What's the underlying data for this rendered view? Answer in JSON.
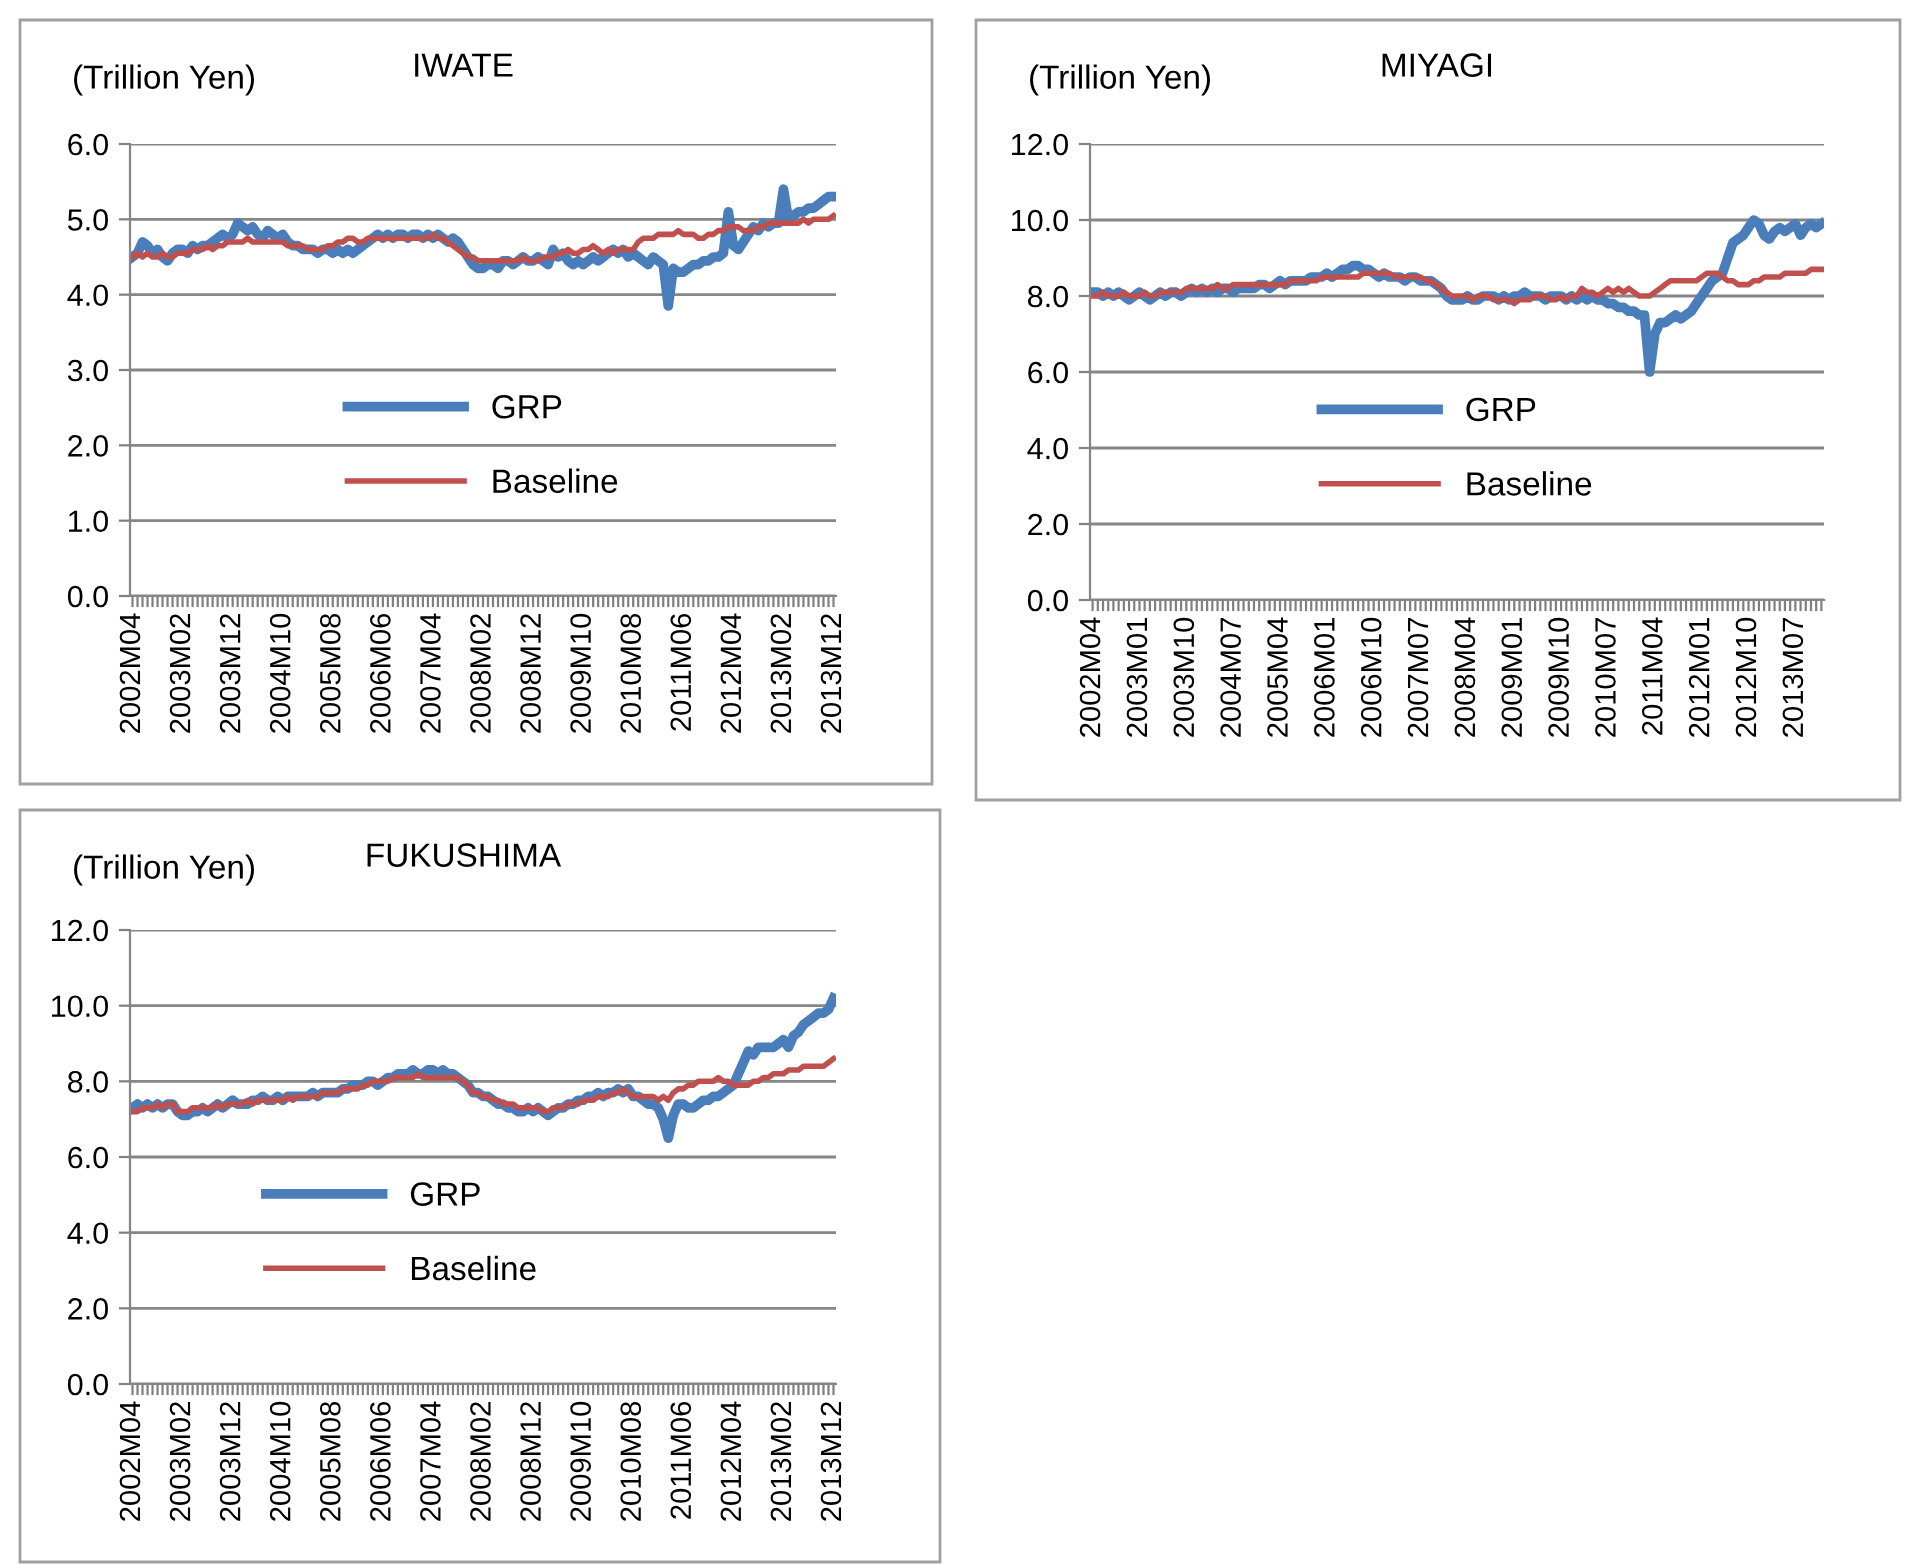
{
  "chart_data": [
    {
      "type": "line",
      "title": "IWATE",
      "ylabel": "(Trillion Yen)",
      "ylim": [
        0,
        6
      ],
      "yticks": [
        {
          "value": 0,
          "label": "0.0"
        },
        {
          "value": 1,
          "label": "1.0"
        },
        {
          "value": 2,
          "label": "2.0"
        },
        {
          "value": 3,
          "label": "3.0"
        },
        {
          "value": 4,
          "label": "4.0"
        },
        {
          "value": 5,
          "label": "5.0"
        },
        {
          "value": 6,
          "label": "6.0"
        }
      ],
      "grid": "y",
      "legend": "center",
      "categories": [
        "2002M04",
        null,
        null,
        null,
        null,
        null,
        null,
        null,
        null,
        null,
        "2003M02",
        null,
        null,
        null,
        null,
        null,
        null,
        null,
        null,
        null,
        "2003M12",
        null,
        null,
        null,
        null,
        null,
        null,
        null,
        null,
        null,
        "2004M10",
        null,
        null,
        null,
        null,
        null,
        null,
        null,
        null,
        null,
        "2005M08",
        null,
        null,
        null,
        null,
        null,
        null,
        null,
        null,
        null,
        "2006M06",
        null,
        null,
        null,
        null,
        null,
        null,
        null,
        null,
        null,
        "2007M04",
        null,
        null,
        null,
        null,
        null,
        null,
        null,
        null,
        null,
        "2008M02",
        null,
        null,
        null,
        null,
        null,
        null,
        null,
        null,
        null,
        "2008M12",
        null,
        null,
        null,
        null,
        null,
        null,
        null,
        null,
        null,
        "2009M10",
        null,
        null,
        null,
        null,
        null,
        null,
        null,
        null,
        null,
        "2010M08",
        null,
        null,
        null,
        null,
        null,
        null,
        null,
        null,
        null,
        "2011M06",
        null,
        null,
        null,
        null,
        null,
        null,
        null,
        null,
        null,
        "2012M04",
        null,
        null,
        null,
        null,
        null,
        null,
        null,
        null,
        null,
        "2013M02",
        null,
        null,
        null,
        null,
        null,
        null,
        null,
        null,
        null,
        "2013M12"
      ],
      "series": [
        {
          "name": "GRP",
          "color": "#4a7ebb",
          "values": [
            4.5,
            4.55,
            4.7,
            4.65,
            4.55,
            4.6,
            4.5,
            4.45,
            4.55,
            4.6,
            4.6,
            4.55,
            4.65,
            4.6,
            4.65,
            4.65,
            4.7,
            4.75,
            4.8,
            4.75,
            4.8,
            4.95,
            4.9,
            4.85,
            4.9,
            4.8,
            4.75,
            4.85,
            4.8,
            4.75,
            4.8,
            4.7,
            4.65,
            4.65,
            4.6,
            4.6,
            4.6,
            4.55,
            4.6,
            4.6,
            4.55,
            4.6,
            4.55,
            4.6,
            4.55,
            4.6,
            4.65,
            4.7,
            4.75,
            4.8,
            4.75,
            4.8,
            4.75,
            4.8,
            4.8,
            4.75,
            4.8,
            4.8,
            4.75,
            4.8,
            4.75,
            4.8,
            4.75,
            4.7,
            4.75,
            4.7,
            4.6,
            4.5,
            4.4,
            4.35,
            4.35,
            4.4,
            4.4,
            4.35,
            4.45,
            4.45,
            4.4,
            4.45,
            4.5,
            4.45,
            4.45,
            4.5,
            4.45,
            4.4,
            4.6,
            4.5,
            4.55,
            4.45,
            4.4,
            4.45,
            4.4,
            4.45,
            4.5,
            4.45,
            4.5,
            4.55,
            4.6,
            4.55,
            4.6,
            4.5,
            4.55,
            4.5,
            4.45,
            4.4,
            4.5,
            4.45,
            4.4,
            3.85,
            4.35,
            4.3,
            4.3,
            4.35,
            4.4,
            4.4,
            4.45,
            4.45,
            4.5,
            4.5,
            4.55,
            5.1,
            4.65,
            4.6,
            4.7,
            4.8,
            4.9,
            4.85,
            4.95,
            4.9,
            4.95,
            4.95,
            5.4,
            5.0,
            5.05,
            5.1,
            5.1,
            5.15,
            5.15,
            5.2,
            5.25,
            5.3,
            5.3
          ]
        },
        {
          "name": "Baseline",
          "color": "#c0504d",
          "values": [
            4.5,
            4.55,
            4.5,
            4.55,
            4.5,
            4.5,
            4.55,
            4.5,
            4.5,
            4.55,
            4.55,
            4.55,
            4.6,
            4.6,
            4.6,
            4.65,
            4.6,
            4.65,
            4.65,
            4.7,
            4.7,
            4.7,
            4.7,
            4.75,
            4.7,
            4.7,
            4.7,
            4.7,
            4.7,
            4.7,
            4.7,
            4.65,
            4.65,
            4.65,
            4.65,
            4.6,
            4.6,
            4.6,
            4.6,
            4.65,
            4.65,
            4.7,
            4.7,
            4.75,
            4.75,
            4.7,
            4.7,
            4.75,
            4.75,
            4.75,
            4.75,
            4.75,
            4.75,
            4.75,
            4.75,
            4.75,
            4.75,
            4.75,
            4.75,
            4.75,
            4.8,
            4.75,
            4.75,
            4.7,
            4.65,
            4.6,
            4.55,
            4.5,
            4.5,
            4.45,
            4.45,
            4.45,
            4.45,
            4.45,
            4.45,
            4.45,
            4.45,
            4.45,
            4.5,
            4.45,
            4.45,
            4.45,
            4.5,
            4.5,
            4.5,
            4.55,
            4.55,
            4.6,
            4.55,
            4.55,
            4.6,
            4.6,
            4.65,
            4.6,
            4.55,
            4.6,
            4.55,
            4.6,
            4.6,
            4.6,
            4.6,
            4.7,
            4.75,
            4.75,
            4.75,
            4.8,
            4.8,
            4.8,
            4.8,
            4.85,
            4.8,
            4.8,
            4.8,
            4.75,
            4.75,
            4.8,
            4.8,
            4.85,
            4.85,
            4.9,
            4.9,
            4.9,
            4.85,
            4.85,
            4.85,
            4.9,
            4.9,
            4.95,
            4.95,
            4.95,
            4.95,
            4.95,
            4.95,
            4.95,
            5.0,
            4.95,
            5.0,
            5.0,
            5.0,
            5.0,
            5.05
          ]
        }
      ]
    },
    {
      "type": "line",
      "title": "MIYAGI",
      "ylabel": "(Trillion Yen)",
      "ylim": [
        0,
        12
      ],
      "yticks": [
        {
          "value": 0,
          "label": "0.0"
        },
        {
          "value": 2,
          "label": "2.0"
        },
        {
          "value": 4,
          "label": "4.0"
        },
        {
          "value": 6,
          "label": "6.0"
        },
        {
          "value": 8,
          "label": "8.0"
        },
        {
          "value": 10,
          "label": "10.0"
        },
        {
          "value": 12,
          "label": "12.0"
        }
      ],
      "grid": "y",
      "legend": "center",
      "categories": [
        "2002M04",
        null,
        null,
        null,
        null,
        null,
        null,
        null,
        null,
        "2003M01",
        null,
        null,
        null,
        null,
        null,
        null,
        null,
        null,
        "2003M10",
        null,
        null,
        null,
        null,
        null,
        null,
        null,
        null,
        "2004M07",
        null,
        null,
        null,
        null,
        null,
        null,
        null,
        null,
        "2005M04",
        null,
        null,
        null,
        null,
        null,
        null,
        null,
        null,
        "2006M01",
        null,
        null,
        null,
        null,
        null,
        null,
        null,
        null,
        "2006M10",
        null,
        null,
        null,
        null,
        null,
        null,
        null,
        null,
        "2007M07",
        null,
        null,
        null,
        null,
        null,
        null,
        null,
        null,
        "2008M04",
        null,
        null,
        null,
        null,
        null,
        null,
        null,
        null,
        "2009M01",
        null,
        null,
        null,
        null,
        null,
        null,
        null,
        null,
        "2009M10",
        null,
        null,
        null,
        null,
        null,
        null,
        null,
        null,
        "2010M07",
        null,
        null,
        null,
        null,
        null,
        null,
        null,
        null,
        "2011M04",
        null,
        null,
        null,
        null,
        null,
        null,
        null,
        null,
        "2012M01",
        null,
        null,
        null,
        null,
        null,
        null,
        null,
        null,
        "2012M10",
        null,
        null,
        null,
        null,
        null,
        null,
        null,
        null,
        "2013M07",
        null,
        null,
        null,
        null,
        null
      ],
      "series": [
        {
          "name": "GRP",
          "color": "#4a7ebb",
          "values": [
            8.1,
            8.1,
            8.0,
            8.1,
            8.0,
            8.1,
            8.0,
            7.9,
            8.0,
            8.1,
            8.0,
            7.9,
            8.0,
            8.1,
            8.0,
            8.1,
            8.1,
            8.0,
            8.1,
            8.2,
            8.1,
            8.2,
            8.1,
            8.2,
            8.1,
            8.2,
            8.2,
            8.1,
            8.2,
            8.2,
            8.2,
            8.2,
            8.3,
            8.3,
            8.2,
            8.3,
            8.4,
            8.3,
            8.4,
            8.4,
            8.4,
            8.4,
            8.5,
            8.5,
            8.5,
            8.6,
            8.5,
            8.6,
            8.7,
            8.7,
            8.8,
            8.8,
            8.7,
            8.7,
            8.6,
            8.5,
            8.6,
            8.5,
            8.5,
            8.5,
            8.4,
            8.5,
            8.5,
            8.4,
            8.4,
            8.4,
            8.3,
            8.2,
            8.0,
            7.9,
            7.9,
            7.9,
            8.0,
            7.9,
            7.9,
            8.0,
            8.0,
            8.0,
            7.9,
            8.0,
            7.9,
            8.0,
            8.0,
            8.1,
            8.0,
            8.0,
            8.0,
            7.9,
            8.0,
            8.0,
            8.0,
            7.9,
            8.0,
            7.9,
            8.0,
            7.9,
            8.0,
            7.9,
            7.9,
            7.8,
            7.8,
            7.7,
            7.7,
            7.6,
            7.6,
            7.5,
            7.5,
            6.0,
            7.0,
            7.3,
            7.3,
            7.4,
            7.5,
            7.4,
            7.5,
            7.6,
            7.8,
            8.0,
            8.2,
            8.4,
            8.5,
            8.6,
            9.0,
            9.4,
            9.5,
            9.6,
            9.8,
            10.0,
            9.9,
            9.6,
            9.5,
            9.7,
            9.8,
            9.7,
            9.8,
            9.9,
            9.6,
            9.8,
            9.9,
            9.8,
            9.9
          ]
        },
        {
          "name": "Baseline",
          "color": "#c0504d",
          "values": [
            8.0,
            8.0,
            8.1,
            8.0,
            8.0,
            8.0,
            8.1,
            8.0,
            8.0,
            8.0,
            8.1,
            8.0,
            8.0,
            8.1,
            8.1,
            8.1,
            8.1,
            8.1,
            8.2,
            8.2,
            8.2,
            8.2,
            8.2,
            8.2,
            8.3,
            8.2,
            8.2,
            8.3,
            8.3,
            8.3,
            8.3,
            8.3,
            8.3,
            8.3,
            8.3,
            8.3,
            8.3,
            8.3,
            8.4,
            8.4,
            8.4,
            8.4,
            8.4,
            8.4,
            8.5,
            8.5,
            8.5,
            8.5,
            8.5,
            8.5,
            8.5,
            8.5,
            8.6,
            8.6,
            8.6,
            8.6,
            8.6,
            8.6,
            8.5,
            8.5,
            8.5,
            8.5,
            8.5,
            8.5,
            8.4,
            8.4,
            8.3,
            8.2,
            8.1,
            8.0,
            8.0,
            8.0,
            8.0,
            7.9,
            8.0,
            8.0,
            8.0,
            7.9,
            7.9,
            7.9,
            7.9,
            7.8,
            7.9,
            7.9,
            7.9,
            8.0,
            8.0,
            8.0,
            7.9,
            7.9,
            8.0,
            7.9,
            8.0,
            8.0,
            8.2,
            8.1,
            8.1,
            8.0,
            8.1,
            8.2,
            8.1,
            8.2,
            8.1,
            8.2,
            8.1,
            8.0,
            8.0,
            8.0,
            8.1,
            8.2,
            8.3,
            8.4,
            8.4,
            8.4,
            8.4,
            8.4,
            8.4,
            8.5,
            8.6,
            8.6,
            8.6,
            8.5,
            8.4,
            8.4,
            8.3,
            8.3,
            8.3,
            8.4,
            8.4,
            8.5,
            8.5,
            8.5,
            8.5,
            8.6,
            8.6,
            8.6,
            8.6,
            8.6,
            8.7,
            8.7,
            8.7
          ]
        }
      ]
    },
    {
      "type": "line",
      "title": "FUKUSHIMA",
      "ylabel": "(Trillion Yen)",
      "ylim": [
        0,
        12
      ],
      "yticks": [
        {
          "value": 0,
          "label": "0.0"
        },
        {
          "value": 2,
          "label": "2.0"
        },
        {
          "value": 4,
          "label": "4.0"
        },
        {
          "value": 6,
          "label": "6.0"
        },
        {
          "value": 8,
          "label": "8.0"
        },
        {
          "value": 10,
          "label": "10.0"
        },
        {
          "value": 12,
          "label": "12.0"
        }
      ],
      "grid": "y",
      "legend": "center left",
      "categories": [
        "2002M04",
        null,
        null,
        null,
        null,
        null,
        null,
        null,
        null,
        null,
        "2003M02",
        null,
        null,
        null,
        null,
        null,
        null,
        null,
        null,
        null,
        "2003M12",
        null,
        null,
        null,
        null,
        null,
        null,
        null,
        null,
        null,
        "2004M10",
        null,
        null,
        null,
        null,
        null,
        null,
        null,
        null,
        null,
        "2005M08",
        null,
        null,
        null,
        null,
        null,
        null,
        null,
        null,
        null,
        "2006M06",
        null,
        null,
        null,
        null,
        null,
        null,
        null,
        null,
        null,
        "2007M04",
        null,
        null,
        null,
        null,
        null,
        null,
        null,
        null,
        null,
        "2008M02",
        null,
        null,
        null,
        null,
        null,
        null,
        null,
        null,
        null,
        "2008M12",
        null,
        null,
        null,
        null,
        null,
        null,
        null,
        null,
        null,
        "2009M10",
        null,
        null,
        null,
        null,
        null,
        null,
        null,
        null,
        null,
        "2010M08",
        null,
        null,
        null,
        null,
        null,
        null,
        null,
        null,
        null,
        "2011M06",
        null,
        null,
        null,
        null,
        null,
        null,
        null,
        null,
        null,
        "2012M04",
        null,
        null,
        null,
        null,
        null,
        null,
        null,
        null,
        null,
        "2013M02",
        null,
        null,
        null,
        null,
        null,
        null,
        null,
        null,
        null,
        "2013M12"
      ],
      "series": [
        {
          "name": "GRP",
          "color": "#4a7ebb",
          "values": [
            7.3,
            7.4,
            7.3,
            7.4,
            7.3,
            7.4,
            7.3,
            7.4,
            7.4,
            7.2,
            7.1,
            7.1,
            7.2,
            7.2,
            7.3,
            7.2,
            7.3,
            7.4,
            7.3,
            7.4,
            7.5,
            7.4,
            7.4,
            7.4,
            7.5,
            7.5,
            7.6,
            7.5,
            7.5,
            7.6,
            7.5,
            7.6,
            7.6,
            7.6,
            7.6,
            7.6,
            7.7,
            7.6,
            7.7,
            7.7,
            7.7,
            7.7,
            7.8,
            7.8,
            7.9,
            7.9,
            7.9,
            8.0,
            8.0,
            7.9,
            8.0,
            8.1,
            8.1,
            8.2,
            8.2,
            8.2,
            8.3,
            8.2,
            8.2,
            8.3,
            8.3,
            8.2,
            8.3,
            8.2,
            8.2,
            8.1,
            8.0,
            7.9,
            7.7,
            7.7,
            7.6,
            7.6,
            7.5,
            7.4,
            7.4,
            7.3,
            7.3,
            7.2,
            7.2,
            7.3,
            7.2,
            7.3,
            7.2,
            7.1,
            7.2,
            7.3,
            7.3,
            7.4,
            7.4,
            7.5,
            7.5,
            7.6,
            7.6,
            7.7,
            7.6,
            7.7,
            7.7,
            7.8,
            7.7,
            7.8,
            7.6,
            7.6,
            7.5,
            7.4,
            7.4,
            7.3,
            7.0,
            6.5,
            7.1,
            7.4,
            7.4,
            7.3,
            7.3,
            7.4,
            7.5,
            7.5,
            7.6,
            7.6,
            7.7,
            7.8,
            7.9,
            8.2,
            8.5,
            8.8,
            8.7,
            8.9,
            8.9,
            8.9,
            8.9,
            9.0,
            9.1,
            8.9,
            9.2,
            9.3,
            9.5,
            9.6,
            9.7,
            9.8,
            9.8,
            9.9,
            10.2
          ]
        },
        {
          "name": "Baseline",
          "color": "#c0504d",
          "values": [
            7.2,
            7.2,
            7.3,
            7.3,
            7.3,
            7.4,
            7.3,
            7.4,
            7.4,
            7.2,
            7.2,
            7.2,
            7.3,
            7.3,
            7.3,
            7.3,
            7.3,
            7.4,
            7.3,
            7.4,
            7.4,
            7.4,
            7.4,
            7.5,
            7.4,
            7.5,
            7.5,
            7.5,
            7.5,
            7.5,
            7.5,
            7.6,
            7.5,
            7.6,
            7.6,
            7.6,
            7.6,
            7.6,
            7.7,
            7.7,
            7.7,
            7.7,
            7.8,
            7.8,
            7.8,
            7.8,
            7.9,
            7.9,
            8.0,
            8.0,
            8.0,
            8.0,
            8.1,
            8.1,
            8.1,
            8.1,
            8.1,
            8.2,
            8.1,
            8.1,
            8.1,
            8.1,
            8.1,
            8.1,
            8.1,
            8.1,
            8.0,
            7.9,
            7.7,
            7.7,
            7.6,
            7.6,
            7.5,
            7.5,
            7.4,
            7.4,
            7.4,
            7.3,
            7.3,
            7.3,
            7.3,
            7.3,
            7.2,
            7.2,
            7.3,
            7.3,
            7.3,
            7.4,
            7.4,
            7.4,
            7.5,
            7.5,
            7.5,
            7.6,
            7.6,
            7.6,
            7.7,
            7.7,
            7.8,
            7.7,
            7.6,
            7.6,
            7.6,
            7.6,
            7.6,
            7.5,
            7.6,
            7.5,
            7.7,
            7.8,
            7.8,
            7.9,
            7.9,
            8.0,
            8.0,
            8.0,
            8.0,
            8.1,
            8.0,
            8.0,
            7.9,
            7.9,
            7.9,
            7.9,
            8.0,
            8.0,
            8.1,
            8.1,
            8.2,
            8.2,
            8.2,
            8.3,
            8.3,
            8.3,
            8.4,
            8.4,
            8.4,
            8.4,
            8.4,
            8.5,
            8.6
          ]
        }
      ]
    }
  ]
}
